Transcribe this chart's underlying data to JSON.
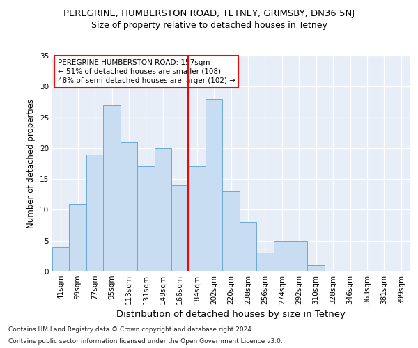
{
  "title1": "PEREGRINE, HUMBERSTON ROAD, TETNEY, GRIMSBY, DN36 5NJ",
  "title2": "Size of property relative to detached houses in Tetney",
  "xlabel": "Distribution of detached houses by size in Tetney",
  "ylabel": "Number of detached properties",
  "categories": [
    "41sqm",
    "59sqm",
    "77sqm",
    "95sqm",
    "113sqm",
    "131sqm",
    "148sqm",
    "166sqm",
    "184sqm",
    "202sqm",
    "220sqm",
    "238sqm",
    "256sqm",
    "274sqm",
    "292sqm",
    "310sqm",
    "328sqm",
    "346sqm",
    "363sqm",
    "381sqm",
    "399sqm"
  ],
  "values": [
    4,
    11,
    19,
    27,
    21,
    17,
    20,
    14,
    17,
    28,
    13,
    8,
    3,
    5,
    5,
    1,
    0,
    0,
    0,
    0,
    0
  ],
  "bar_color": "#c9ddf2",
  "bar_edge_color": "#6aaad4",
  "red_line_index": 7.5,
  "annotation_line1": "PEREGRINE HUMBERSTON ROAD: 157sqm",
  "annotation_line2": "← 51% of detached houses are smaller (108)",
  "annotation_line3": "48% of semi-detached houses are larger (102) →",
  "footer1": "Contains HM Land Registry data © Crown copyright and database right 2024.",
  "footer2": "Contains public sector information licensed under the Open Government Licence v3.0.",
  "ylim": [
    0,
    35
  ],
  "yticks": [
    0,
    5,
    10,
    15,
    20,
    25,
    30,
    35
  ],
  "bg_color": "#e8eef8",
  "fig_bg_color": "#ffffff",
  "title1_fontsize": 9.5,
  "title2_fontsize": 9.0,
  "xlabel_fontsize": 9.5,
  "ylabel_fontsize": 8.5,
  "tick_fontsize": 7.5,
  "annot_fontsize": 7.5,
  "footer_fontsize": 6.5
}
